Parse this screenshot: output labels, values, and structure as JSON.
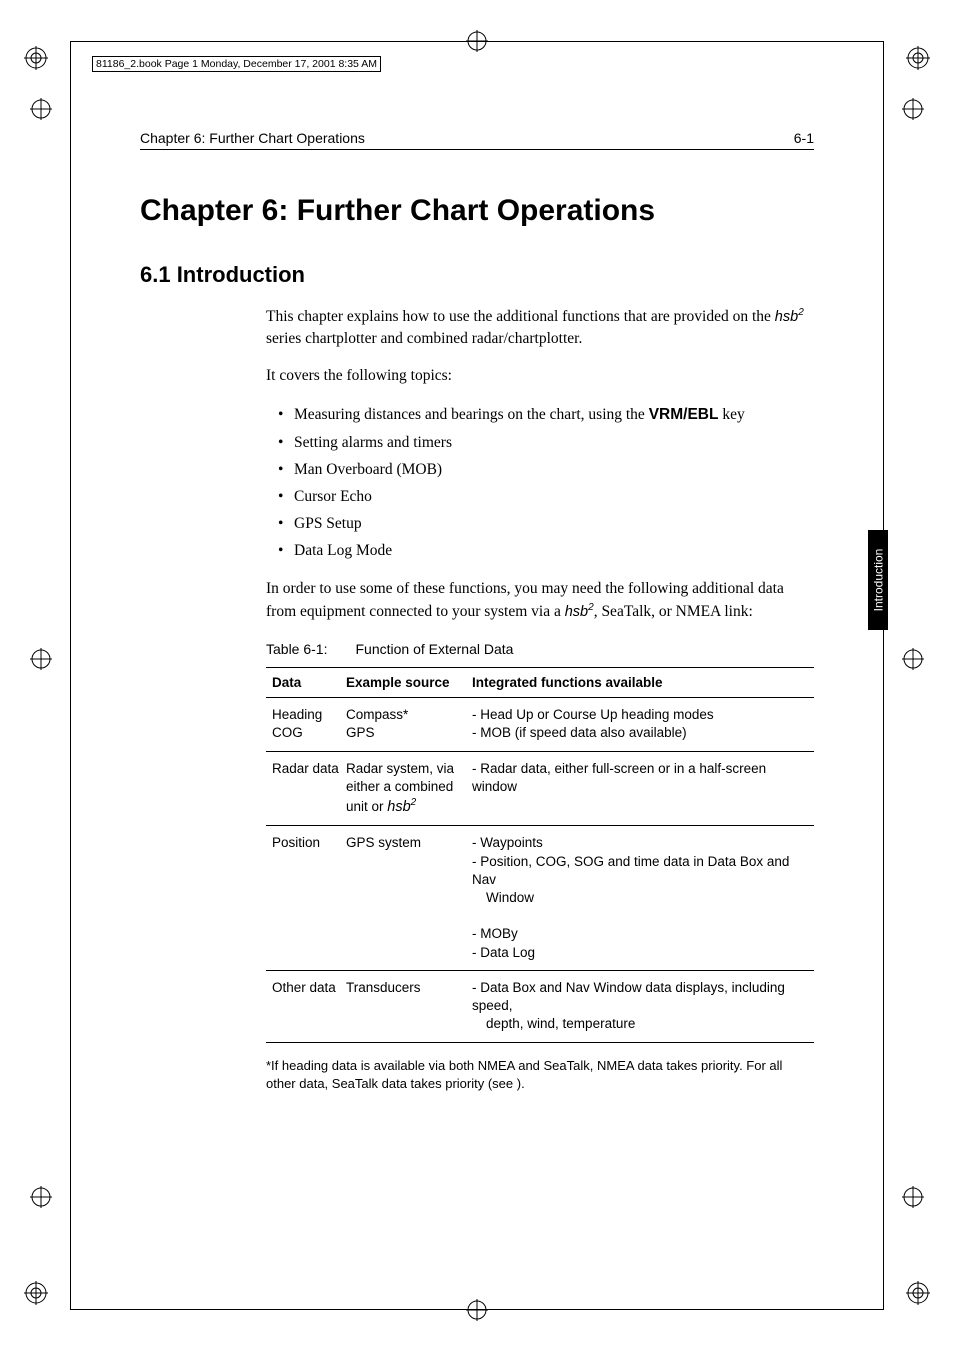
{
  "bookmark": "81186_2.book  Page 1  Monday, December 17, 2001  8:35 AM",
  "running_head": {
    "left": "Chapter 6: Further Chart Operations",
    "right": "6-1"
  },
  "chapter_title": "Chapter 6:  Further Chart Operations",
  "section_title": "6.1  Introduction",
  "para1_a": "This chapter explains how to use the additional functions that are provided on the ",
  "para1_b": " series chartplotter and combined radar/chartplotter.",
  "para2": "It covers the following topics:",
  "topics": [
    {
      "pre": "Measuring distances and bearings on the chart, using the ",
      "bold": "VRM/EBL",
      "post": " key"
    },
    {
      "pre": "Setting alarms and timers",
      "bold": "",
      "post": ""
    },
    {
      "pre": "Man Overboard (MOB)",
      "bold": "",
      "post": ""
    },
    {
      "pre": "Cursor Echo",
      "bold": "",
      "post": ""
    },
    {
      "pre": "GPS Setup",
      "bold": "",
      "post": ""
    },
    {
      "pre": "Data Log Mode",
      "bold": "",
      "post": ""
    }
  ],
  "para3_a": "In order to use some of these functions, you may need the following additional data from equipment connected to your system via a ",
  "para3_b": ", SeaTalk, or NMEA link:",
  "table": {
    "caption_num": "Table 6-1:",
    "caption_text": "Function of External Data",
    "headers": [
      "Data",
      "Example source",
      "Integrated functions available"
    ],
    "rows": [
      {
        "c1": "Heading\nCOG",
        "c2": "Compass*\nGPS",
        "c3": [
          "- Head Up or Course Up heading modes",
          "- MOB (if speed data also available)"
        ]
      },
      {
        "c1": "Radar data",
        "c2_pre": "Radar system, via either a combined unit or ",
        "c2_hsb": true,
        "c3": [
          "- Radar data, either full-screen or in a half-screen window"
        ]
      },
      {
        "c1": "Position",
        "c2": "GPS system",
        "c3": [
          "- Waypoints",
          "- Position, COG, SOG and time data in Data Box and Nav",
          "  Window",
          "- MOBy",
          "- Data Log"
        ]
      },
      {
        "c1": "Other data",
        "c2": "Transducers",
        "c3": [
          "- Data Box and Nav Window data displays, including speed,",
          "  depth, wind, temperature"
        ]
      }
    ]
  },
  "footnote": "*If heading data is available via both NMEA and SeaTalk, NMEA data takes priority. For all other data, SeaTalk data takes priority (see                      ).",
  "side_tab": "Introduction",
  "hsb_label": "hsb",
  "colors": {
    "text": "#000000",
    "background": "#ffffff",
    "rule": "#000000",
    "tab_bg": "#000000",
    "tab_fg": "#ffffff"
  }
}
